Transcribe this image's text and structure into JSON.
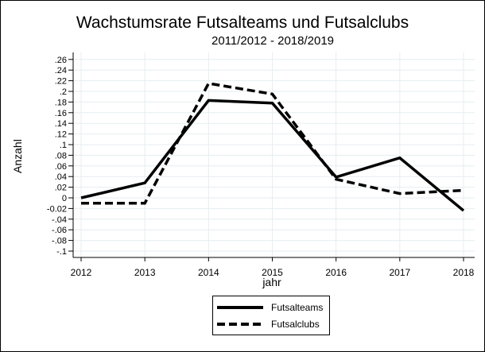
{
  "chart_data": {
    "type": "line",
    "title": "Wachstumsrate Futsalteams und Futsalclubs",
    "subtitle": "2011/2012 - 2018/2019",
    "xlabel": "jahr",
    "ylabel": "Anzahl",
    "x": [
      2012,
      2013,
      2014,
      2015,
      2016,
      2017,
      2018
    ],
    "series": [
      {
        "name": "Futsalteams",
        "style": "solid",
        "values": [
          0.0,
          0.028,
          0.183,
          0.178,
          0.039,
          0.075,
          -0.024
        ]
      },
      {
        "name": "Futsalclubs",
        "style": "dashed",
        "values": [
          -0.01,
          -0.01,
          0.215,
          0.195,
          0.035,
          0.008,
          0.014
        ]
      }
    ],
    "ylim": [
      -0.1,
      0.26
    ],
    "yticks": [
      ".26",
      ".24",
      ".22",
      ".2",
      ".18",
      ".16",
      ".14",
      ".12",
      ".1",
      ".08",
      ".06",
      ".04",
      ".02",
      "0",
      "-0.02",
      "-.04",
      "-.06",
      "-.08",
      "-.1"
    ],
    "ytick_values": [
      0.26,
      0.24,
      0.22,
      0.2,
      0.18,
      0.16,
      0.14,
      0.12,
      0.1,
      0.08,
      0.06,
      0.04,
      0.02,
      0,
      -0.02,
      -0.04,
      -0.06,
      -0.08,
      -0.1
    ],
    "xticks": [
      "2012",
      "2013",
      "2014",
      "2015",
      "2016",
      "2017",
      "2018"
    ],
    "grid": true,
    "legend_position": "bottom",
    "colors": {
      "line": "#000000",
      "grid": "#e6eef0",
      "background": "#ffffff"
    }
  },
  "legend": {
    "items": [
      {
        "label": "Futsalteams"
      },
      {
        "label": "Futsalclubs"
      }
    ]
  }
}
